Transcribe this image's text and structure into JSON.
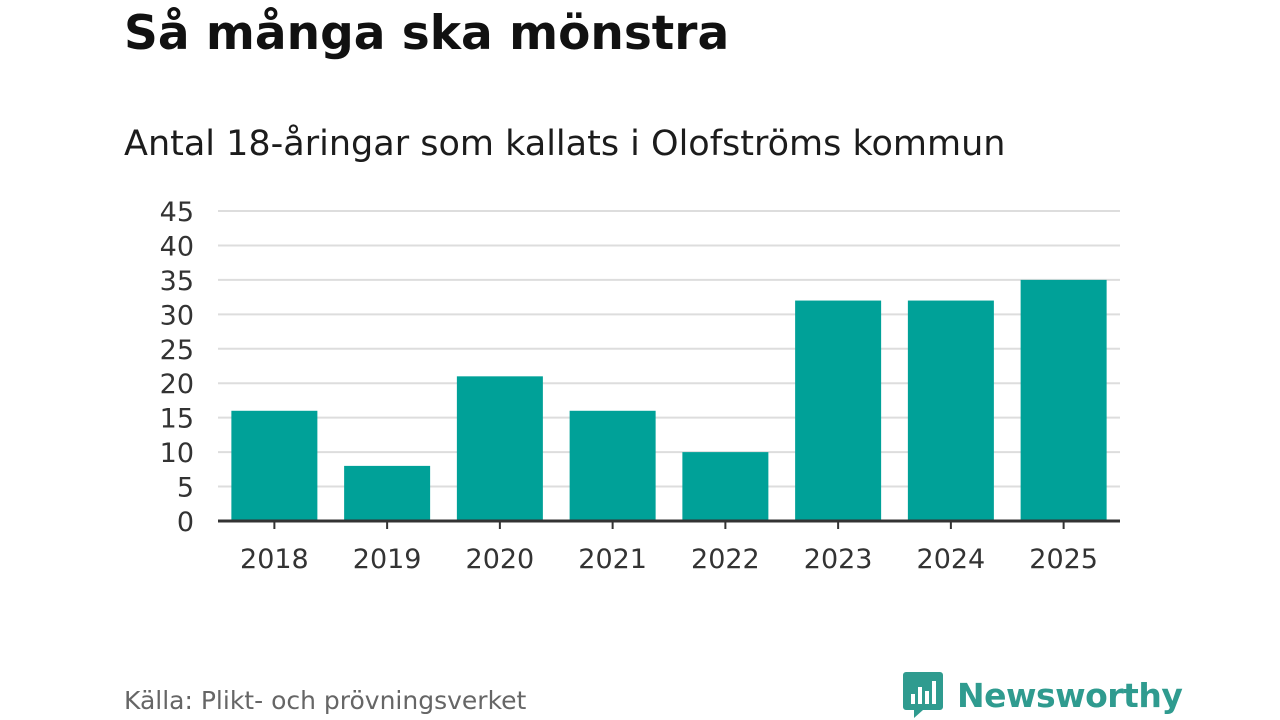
{
  "title": "Så många ska mönstra",
  "subtitle": "Antal 18-åringar som kallats i Olofströms kommun",
  "source": "Källa: Plikt- och prövningsverket",
  "brand": {
    "name": "Newsworthy",
    "icon": "bar-chart-speech-icon",
    "color": "#2f9b8f"
  },
  "chart_data": {
    "type": "bar",
    "title": "Så många ska mönstra",
    "subtitle": "Antal 18-åringar som kallats i Olofströms kommun",
    "xlabel": "",
    "ylabel": "",
    "categories": [
      "2018",
      "2019",
      "2020",
      "2021",
      "2022",
      "2023",
      "2024",
      "2025"
    ],
    "values": [
      16,
      8,
      21,
      16,
      10,
      32,
      32,
      35
    ],
    "ylim": [
      0,
      45
    ],
    "yticks": [
      0,
      5,
      10,
      15,
      20,
      25,
      30,
      35,
      40,
      45
    ],
    "grid": true,
    "bar_color": "#00a198",
    "grid_color": "#dddddd",
    "axis_color": "#333333"
  }
}
